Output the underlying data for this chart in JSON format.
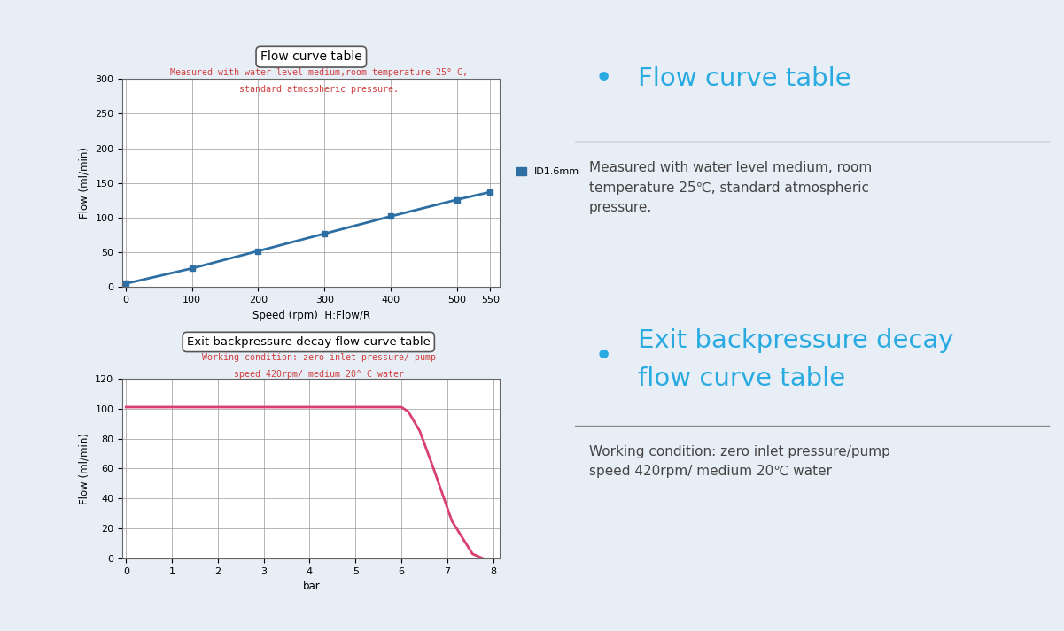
{
  "bg_color": "#e8eef5",
  "left_panel_bg": "#ffffff",
  "chart1_title": "Flow curve table",
  "chart1_subtitle_line1": "Measured with water level medium,room temperature 25° C,",
  "chart1_subtitle_line2": "standard atmospheric pressure.",
  "chart1_subtitle_color": "#d04040",
  "chart1_x": [
    0,
    100,
    200,
    300,
    400,
    500,
    550
  ],
  "chart1_y": [
    5,
    27,
    52,
    77,
    102,
    126,
    137
  ],
  "chart1_line_color": "#2e6fa3",
  "chart1_marker_color": "#2e6fa3",
  "chart1_xlabel": "Speed (rpm)  H:Flow/R",
  "chart1_ylabel": "Flow (ml/min)",
  "chart1_ylim": [
    0,
    300
  ],
  "chart1_yticks": [
    0,
    50,
    100,
    150,
    200,
    250,
    300
  ],
  "chart1_xticks": [
    0,
    100,
    200,
    300,
    400,
    500,
    550
  ],
  "chart1_legend_label": "ID1.6mm",
  "chart1_legend_color": "#2e6fa3",
  "chart2_title": "Exit backpressure decay flow curve table",
  "chart2_subtitle_line1": "Working condition: zero inlet pressure/ pump",
  "chart2_subtitle_line2": "speed 420rpm/ medium 20° C water",
  "chart2_subtitle_color": "#d04040",
  "chart2_x": [
    0,
    6.0,
    6.15,
    6.4,
    6.7,
    7.1,
    7.55,
    7.78
  ],
  "chart2_y": [
    101,
    101,
    98,
    85,
    60,
    25,
    3,
    0
  ],
  "chart2_line_color": "#d94070",
  "chart2_xlabel": "bar",
  "chart2_ylabel": "Flow (ml/min)",
  "chart2_ylim": [
    0,
    120
  ],
  "chart2_yticks": [
    0,
    20,
    40,
    60,
    80,
    100,
    120
  ],
  "chart2_xticks": [
    0,
    1,
    2,
    3,
    4,
    5,
    6,
    7,
    8
  ],
  "right_title1": "Flow curve table",
  "right_text1": "Measured with water level medium, room\ntemperature 25℃, standard atmospheric\npressure.",
  "right_title2_line1": "Exit backpressure decay",
  "right_title2_line2": "flow curve table",
  "right_text2": "Working condition: zero inlet pressure/pump\nspeed 420rpm/ medium 20℃ water",
  "cyan_color": "#29abe2",
  "text_color": "#444444",
  "line_color": "#888888"
}
